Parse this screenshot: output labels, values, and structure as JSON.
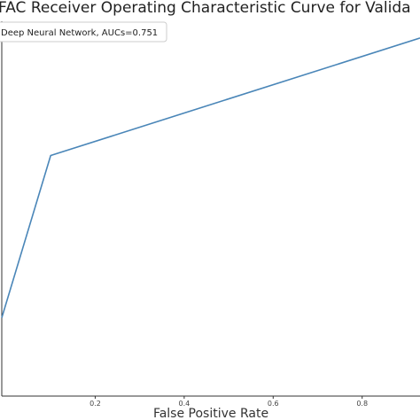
{
  "chart_data": {
    "type": "line",
    "title": "FAC Receiver Operating Characteristic Curve for Valida",
    "xlabel": "False Positive Rate",
    "ylabel": "",
    "xlim": [
      -0.01,
      0.93
    ],
    "ylim": [
      0.35,
      1.02
    ],
    "x_ticks": [
      0.2,
      0.4,
      0.6,
      0.8
    ],
    "x_tick_labels": [
      "0.2",
      "0.4",
      "0.6",
      "0.8"
    ],
    "grid": false,
    "legend_position": "top-left",
    "series": [
      {
        "name": "Deep Neural Network, AUCs=0.751",
        "color": "#4a86b8",
        "x": [
          -0.01,
          0.1,
          0.93
        ],
        "y": [
          0.49,
          0.78,
          0.99
        ]
      }
    ]
  }
}
